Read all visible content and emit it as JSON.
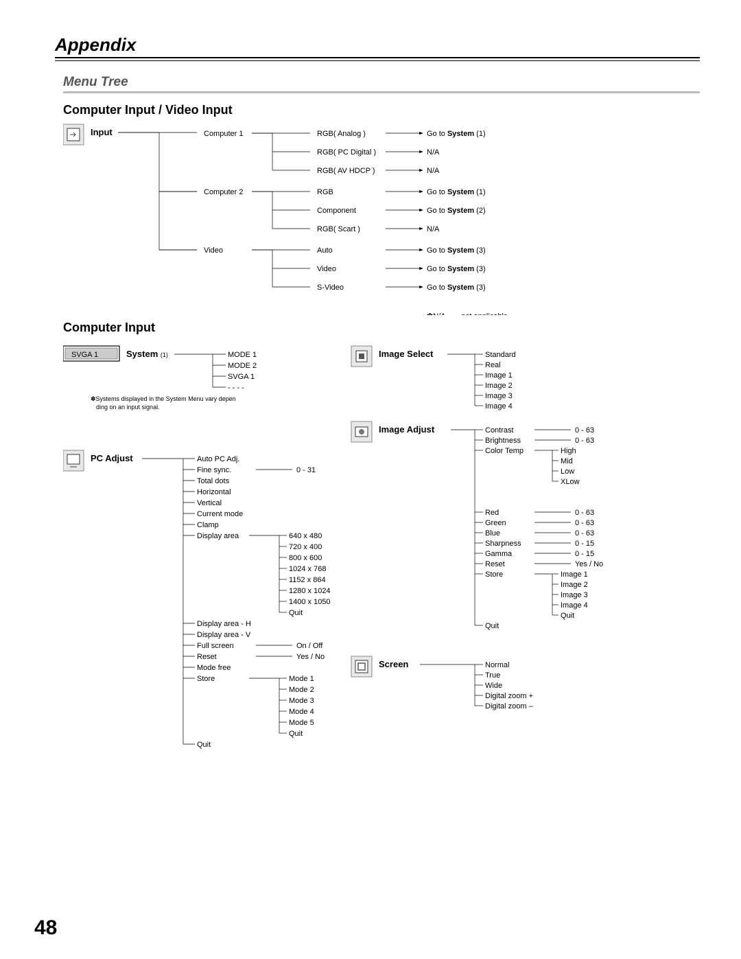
{
  "page": {
    "title": "Appendix",
    "menuTree": "Menu Tree",
    "number": "48"
  },
  "sections": {
    "s1": {
      "title": "Computer Input / Video Input"
    },
    "s2": {
      "title": "Computer Input"
    }
  },
  "footnote_na": "✽N/A - - - not applicable",
  "footnote_system": "✽Systems displayed in the System Menu vary depending on an input signal.",
  "input": {
    "label": "Input",
    "branches": [
      {
        "name": "Computer 1",
        "subs": [
          {
            "name": "RGB( Analog )",
            "goto": "Go to System (1)"
          },
          {
            "name": "RGB( PC Digital )",
            "goto": "N/A"
          },
          {
            "name": "RGB( AV HDCP )",
            "goto": "N/A"
          }
        ]
      },
      {
        "name": "Computer 2",
        "subs": [
          {
            "name": "RGB",
            "goto": "Go to System (1)"
          },
          {
            "name": "Component",
            "goto": "Go to System (2)"
          },
          {
            "name": "RGB( Scart )",
            "goto": "N/A"
          }
        ]
      },
      {
        "name": "Video",
        "subs": [
          {
            "name": "Auto",
            "goto": "Go to System (3)"
          },
          {
            "name": "Video",
            "goto": "Go to System (3)"
          },
          {
            "name": "S-Video",
            "goto": "Go to System (3)"
          }
        ]
      }
    ]
  },
  "system": {
    "label": "System (1)",
    "badge": "SVGA 1",
    "items": [
      "MODE 1",
      "MODE 2",
      "SVGA 1",
      "- - - -"
    ]
  },
  "pcadjust": {
    "label": "PC Adjust",
    "items": [
      {
        "name": "Auto PC Adj."
      },
      {
        "name": "Fine sync.",
        "range": "0 - 31"
      },
      {
        "name": "Total dots"
      },
      {
        "name": "Horizontal"
      },
      {
        "name": "Vertical"
      },
      {
        "name": "Current mode"
      },
      {
        "name": "Clamp"
      },
      {
        "name": "Display area",
        "children": [
          "640 x 480",
          "720 x 400",
          "800 x 600",
          "1024 x 768",
          "1152 x 864",
          "1280 x 1024",
          "1400 x 1050",
          "Quit"
        ]
      },
      {
        "name": "Display area - H"
      },
      {
        "name": "Display area - V"
      },
      {
        "name": "Full screen",
        "range": "On / Off"
      },
      {
        "name": "Reset",
        "range": "Yes / No"
      },
      {
        "name": "Mode free"
      },
      {
        "name": "Store",
        "children": [
          "Mode 1",
          "Mode 2",
          "Mode 3",
          "Mode 4",
          "Mode 5",
          "Quit"
        ]
      },
      {
        "name": "Quit"
      }
    ]
  },
  "imageselect": {
    "label": "Image Select",
    "items": [
      "Standard",
      "Real",
      "Image 1",
      "Image 2",
      "Image 3",
      "Image 4"
    ]
  },
  "imageadjust": {
    "label": "Image Adjust",
    "items": [
      {
        "name": "Contrast",
        "range": "0 - 63"
      },
      {
        "name": "Brightness",
        "range": "0 - 63"
      },
      {
        "name": "Color Temp",
        "children": [
          "High",
          "Mid",
          "Low",
          "XLow"
        ]
      },
      {
        "name": "Red",
        "range": "0 - 63"
      },
      {
        "name": "Green",
        "range": "0 - 63"
      },
      {
        "name": "Blue",
        "range": "0 - 63"
      },
      {
        "name": "Sharpness",
        "range": "0 - 15"
      },
      {
        "name": "Gamma",
        "range": "0 - 15"
      },
      {
        "name": "Reset",
        "range": "Yes / No"
      },
      {
        "name": "Store",
        "children": [
          "Image 1",
          "Image 2",
          "Image 3",
          "Image 4",
          "Quit"
        ]
      },
      {
        "name": "Quit"
      }
    ]
  },
  "screen": {
    "label": "Screen",
    "items": [
      "Normal",
      "True",
      "Wide",
      "Digital zoom +",
      "Digital zoom –"
    ]
  },
  "style": {
    "line_color": "#000",
    "icon_fill": "#e8e8e8",
    "icon_border": "#888"
  }
}
